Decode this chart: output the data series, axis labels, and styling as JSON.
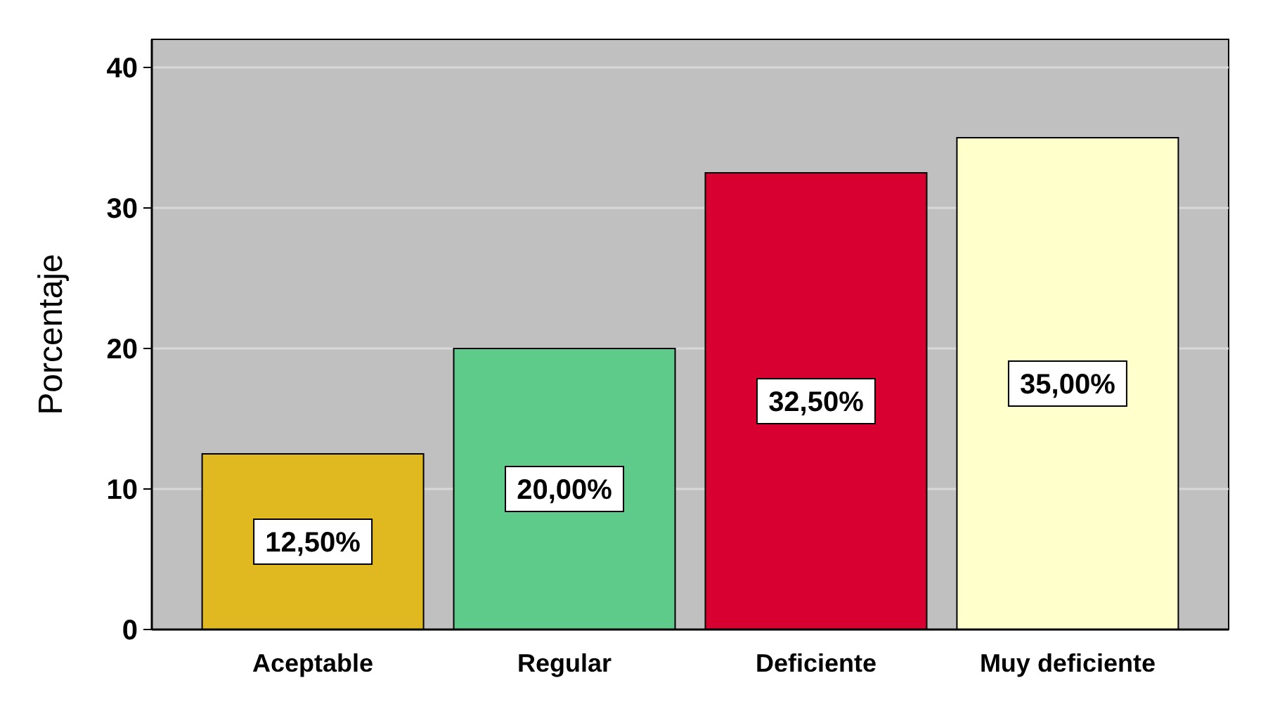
{
  "chart_data": {
    "type": "bar",
    "ylabel": "Porcentaje",
    "categories": [
      "Aceptable",
      "Regular",
      "Deficiente",
      "Muy deficiente"
    ],
    "values": [
      12.5,
      20,
      32.5,
      35
    ],
    "colors": [
      "#e0b820",
      "#5ecb8a",
      "#d80030",
      "#ffffcc"
    ],
    "value_labels": [
      "12,50%",
      "20,00%",
      "32,50%",
      "35,00%"
    ],
    "ylim": [
      0,
      42
    ],
    "yticks": [
      0,
      10,
      20,
      30,
      40
    ],
    "grid": "y"
  }
}
